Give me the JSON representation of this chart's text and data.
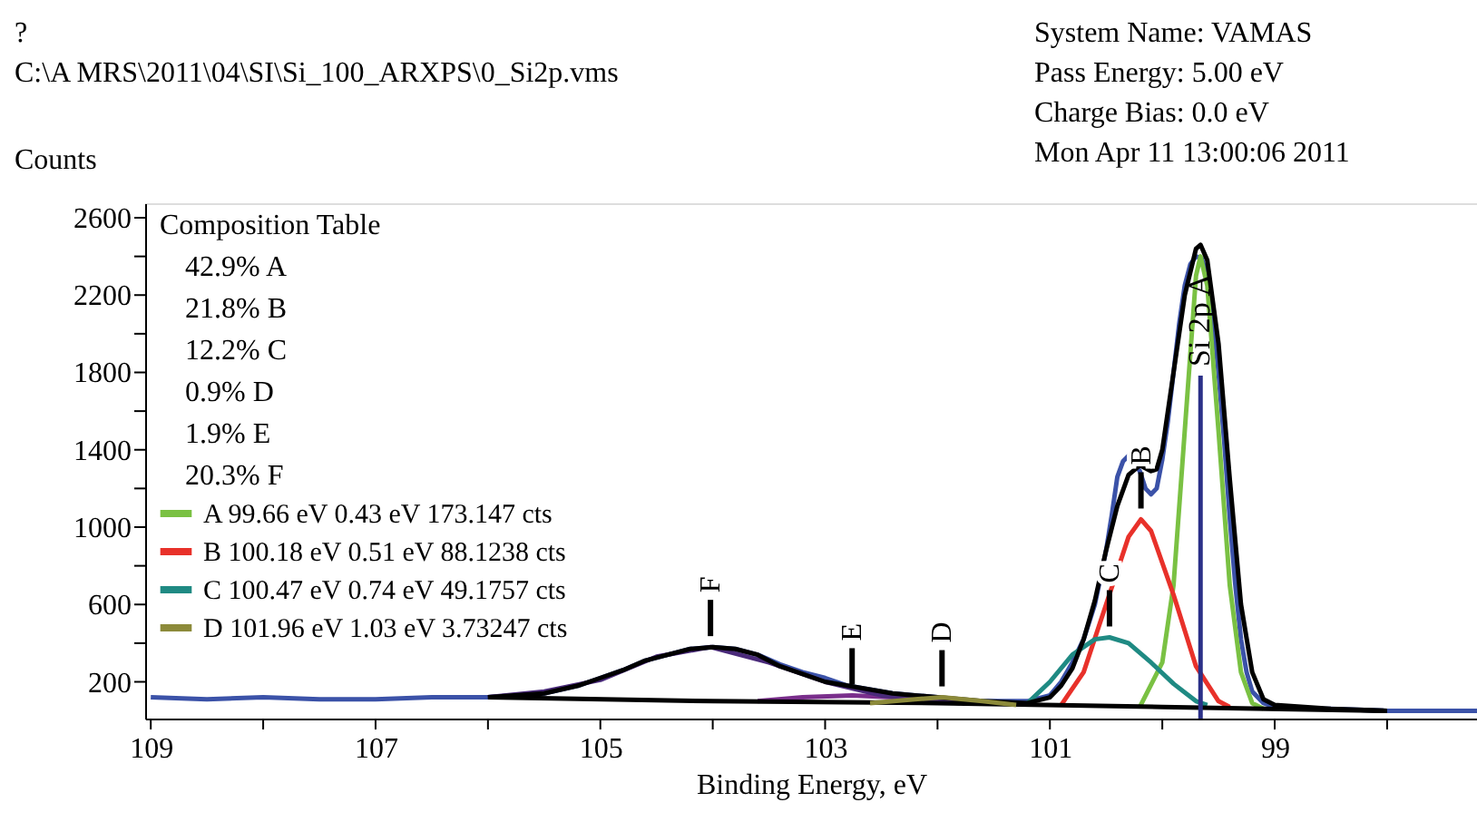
{
  "chart_data": {
    "type": "line",
    "xlabel": "Binding Energy, eV",
    "ylabel": "Counts",
    "xlim": [
      109.05,
      97.2
    ],
    "ylim": [
      10,
      2675
    ],
    "xticks": [
      109,
      {
        "value": 108,
        "label": null
      },
      107,
      {
        "value": 106,
        "label": null
      },
      105,
      {
        "value": 104,
        "label": null
      },
      103,
      {
        "value": 102,
        "label": null
      },
      101,
      {
        "value": 100,
        "label": null
      },
      99,
      {
        "value": 98,
        "label": null
      }
    ],
    "yticks": [
      200,
      {
        "value": 400,
        "label": null
      },
      600,
      {
        "value": 800,
        "label": null
      },
      1000,
      {
        "value": 1200,
        "label": null
      },
      1400,
      {
        "value": 1600,
        "label": null
      },
      1800,
      {
        "value": 2000,
        "label": null
      },
      2200,
      {
        "value": 2400,
        "label": null
      },
      2600
    ],
    "grid": false,
    "legend": "left",
    "series": [
      {
        "color": "#3b52a8",
        "x": [
          109.0,
          108.5,
          108.0,
          107.5,
          107.0,
          106.5,
          106.0,
          105.5,
          105.2,
          105.0,
          104.8,
          104.6,
          104.4,
          104.2,
          104.0,
          103.8,
          103.6,
          103.4,
          103.2,
          103.0,
          102.8,
          102.6,
          102.4,
          102.2,
          102.0,
          101.8,
          101.6,
          101.4,
          101.2,
          101.0,
          100.9,
          100.8,
          100.7,
          100.6,
          100.55,
          100.5,
          100.45,
          100.4,
          100.35,
          100.3,
          100.25,
          100.2,
          100.15,
          100.1,
          100.05,
          100.0,
          99.95,
          99.9,
          99.85,
          99.8,
          99.75,
          99.7,
          99.65,
          99.6,
          99.55,
          99.5,
          99.45,
          99.4,
          99.35,
          99.3,
          99.25,
          99.2,
          99.1,
          99.0,
          98.8,
          98.5,
          98.0,
          97.5,
          97.2
        ],
        "values": [
          120,
          110,
          120,
          110,
          110,
          120,
          120,
          140,
          180,
          220,
          260,
          310,
          340,
          370,
          380,
          370,
          340,
          290,
          250,
          220,
          180,
          160,
          140,
          130,
          120,
          100,
          100,
          100,
          100,
          130,
          200,
          300,
          420,
          600,
          740,
          880,
          1060,
          1260,
          1340,
          1370,
          1330,
          1290,
          1200,
          1170,
          1200,
          1350,
          1550,
          1800,
          2050,
          2250,
          2360,
          2400,
          2390,
          2300,
          2100,
          1800,
          1450,
          1050,
          700,
          420,
          250,
          150,
          90,
          70,
          60,
          60,
          50,
          50,
          50
        ]
      },
      {
        "name": "A 99.66 eV 0.43 eV 173.147 cts",
        "color": "#7ac143",
        "x": [
          100.2,
          100.0,
          99.9,
          99.8,
          99.7,
          99.66,
          99.6,
          99.5,
          99.4,
          99.3,
          99.2,
          99.1
        ],
        "values": [
          70,
          300,
          700,
          1500,
          2300,
          2400,
          2250,
          1500,
          700,
          250,
          90,
          60
        ]
      },
      {
        "name": "B 100.18 eV 0.51 eV 88.1238 cts",
        "color": "#e8312a",
        "x": [
          100.9,
          100.7,
          100.5,
          100.3,
          100.19,
          100.1,
          99.9,
          99.7,
          99.5,
          99.4
        ],
        "values": [
          80,
          250,
          600,
          950,
          1040,
          980,
          650,
          280,
          100,
          70
        ]
      },
      {
        "name": "C 100.47 eV 0.74 eV 49.1757 cts",
        "color": "#1f8a83",
        "x": [
          101.2,
          101.0,
          100.8,
          100.6,
          100.47,
          100.3,
          100.1,
          99.9,
          99.7,
          99.6
        ],
        "values": [
          90,
          200,
          340,
          420,
          430,
          400,
          300,
          190,
          100,
          80
        ]
      },
      {
        "color": "#7a2f8c",
        "x": [
          103.6,
          103.2,
          102.76,
          102.4,
          102.0,
          101.8
        ],
        "values": [
          100,
          120,
          130,
          120,
          100,
          90
        ]
      },
      {
        "color": "#4a2a7a",
        "x": [
          106.0,
          105.5,
          105.0,
          104.5,
          104.02,
          103.5,
          103.0,
          102.5,
          102.0,
          101.5
        ],
        "values": [
          120,
          150,
          210,
          330,
          380,
          300,
          200,
          130,
          100,
          90
        ]
      },
      {
        "color": "#000000",
        "x": [
          106.0,
          104.0,
          102.0,
          100.0,
          98.0
        ],
        "values": [
          120,
          100,
          90,
          70,
          50
        ]
      },
      {
        "color": "#000000",
        "x": [
          106.0,
          105.5,
          105.2,
          105.0,
          104.8,
          104.6,
          104.4,
          104.2,
          104.0,
          103.8,
          103.6,
          103.4,
          103.2,
          103.0,
          102.8,
          102.6,
          102.4,
          102.2,
          102.0,
          101.6,
          101.2,
          101.0,
          100.9,
          100.8,
          100.7,
          100.6,
          100.5,
          100.4,
          100.3,
          100.2,
          100.1,
          100.05,
          100.0,
          99.9,
          99.8,
          99.7,
          99.66,
          99.6,
          99.5,
          99.4,
          99.3,
          99.2,
          99.1,
          99.0,
          98.5,
          98.0
        ],
        "values": [
          120,
          140,
          180,
          220,
          260,
          310,
          340,
          370,
          380,
          370,
          340,
          280,
          240,
          200,
          180,
          160,
          140,
          130,
          120,
          100,
          90,
          120,
          180,
          270,
          420,
          620,
          880,
          1110,
          1270,
          1320,
          1290,
          1300,
          1400,
          1800,
          2200,
          2440,
          2460,
          2380,
          1950,
          1250,
          600,
          250,
          110,
          80,
          60,
          50
        ]
      },
      {
        "name": "D 101.96 eV 1.03 eV 3.73247 cts",
        "color": "#8c8a3a",
        "x": [
          102.6,
          102.2,
          101.96,
          101.6,
          101.3
        ],
        "values": [
          90,
          110,
          120,
          100,
          80
        ]
      }
    ],
    "ref_lines": [
      {
        "axis": "x",
        "value": 99.66,
        "label": "Si 2p A",
        "color": "#2b3088"
      }
    ],
    "annotations": [
      "?",
      "C:\\A MRS\\2011\\04\\SI\\Si_100_ARXPS\\0_Si2p.vms",
      "System Name: VAMAS",
      "Pass Energy: 5.00 eV",
      "Charge Bias: 0.0 eV",
      "Mon Apr 11 13:00:06 2011",
      "Composition Table",
      "42.9% A",
      "21.8% B",
      "12.2% C",
      "0.9% D",
      "1.9% E",
      "20.3% F",
      {
        "text": "B",
        "x": 100.19,
        "y": 1040
      },
      {
        "text": "C",
        "x": 100.47,
        "y": 430
      },
      {
        "text": "D",
        "x": 101.96,
        "y": 120
      },
      {
        "text": "E",
        "x": 102.76,
        "y": 130
      },
      {
        "text": "F",
        "x": 104.02,
        "y": 380
      }
    ]
  }
}
